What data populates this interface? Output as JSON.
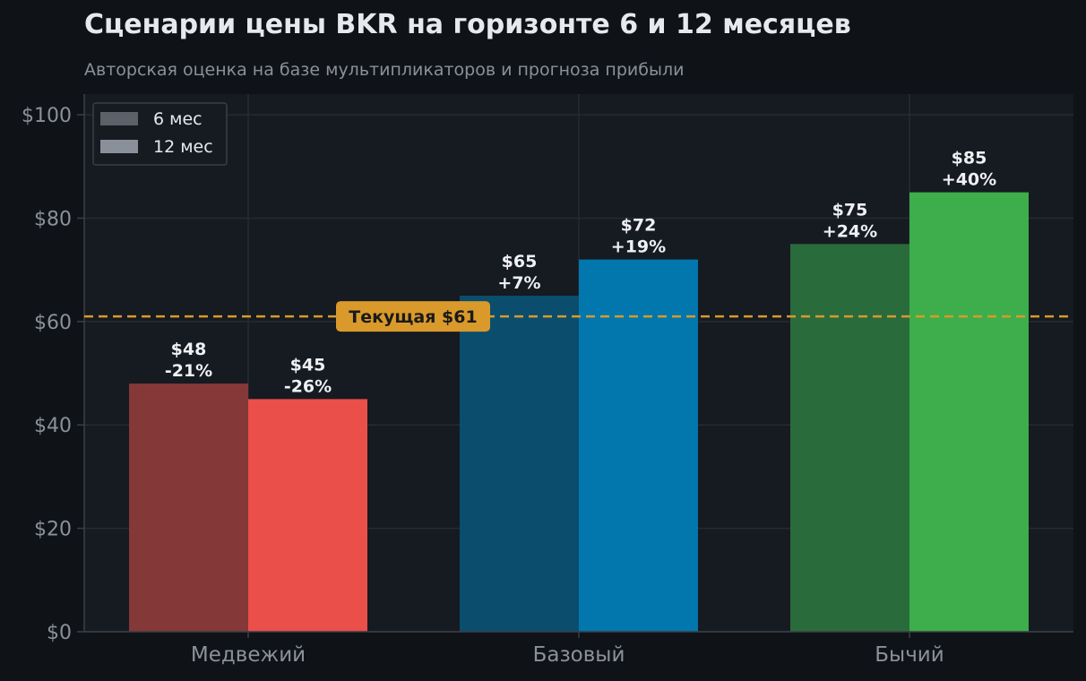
{
  "header": {
    "title": "Сценарии цены BKR на горизонте 6 и 12 месяцев",
    "subtitle": "Авторская оценка на базе мультипликаторов и прогноза прибыли"
  },
  "chart_data": {
    "type": "bar",
    "categories": [
      "Медвежий",
      "Базовый",
      "Бычий"
    ],
    "series": [
      {
        "name": "6 мес",
        "values": [
          48,
          65,
          75
        ],
        "value_labels": [
          "$48",
          "$65",
          "$75"
        ],
        "change_labels": [
          "-21%",
          "+7%",
          "+24%"
        ],
        "colors": [
          "#853838",
          "#0b4d6d",
          "#2a6b3c"
        ]
      },
      {
        "name": "12 мес",
        "values": [
          45,
          72,
          85
        ],
        "value_labels": [
          "$45",
          "$72",
          "$85"
        ],
        "change_labels": [
          "-26%",
          "+19%",
          "+40%"
        ],
        "colors": [
          "#ea4f49",
          "#0177ad",
          "#3dae4b"
        ]
      }
    ],
    "legend_colors": [
      "#5d6069",
      "#8a9099"
    ],
    "reference_line": {
      "value": 61,
      "label": "Текущая $61",
      "color": "#d99a2b"
    },
    "ylim": [
      0,
      104
    ],
    "yticks": [
      0,
      20,
      40,
      60,
      80,
      100
    ],
    "ytick_labels": [
      "$0",
      "$20",
      "$40",
      "$60",
      "$80",
      "$100"
    ],
    "xlabel": "",
    "ylabel": "",
    "grid": true,
    "legend_position": "top-left",
    "colors": {
      "background": "#0f1317",
      "plot_background": "#161a21",
      "grid": "#262b33"
    }
  }
}
